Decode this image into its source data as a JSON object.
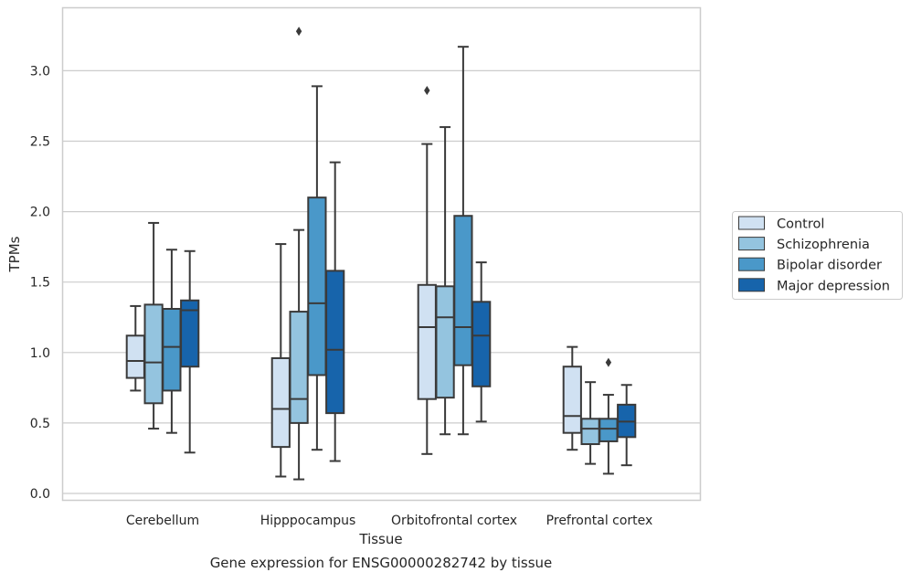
{
  "chart_data": {
    "type": "box",
    "xlabel": "Tissue",
    "ylabel": "TPMs",
    "caption": "Gene expression for ENSG00000282742 by tissue",
    "ylim": [
      -0.05,
      3.38
    ],
    "yticks": [
      "0.0",
      "0.5",
      "1.0",
      "1.5",
      "2.0",
      "2.5",
      "3.0"
    ],
    "grid": "horizontal",
    "legend_position": "right",
    "categories": [
      "Cerebellum",
      "Hipppocampus",
      "Orbitofrontal cortex",
      "Prefrontal cortex"
    ],
    "series": [
      {
        "name": "Control",
        "color": "#d0e1f2",
        "boxes": [
          {
            "whislo": 0.73,
            "q1": 0.82,
            "med": 0.94,
            "q3": 1.12,
            "whishi": 1.33,
            "fliers": []
          },
          {
            "whislo": 0.12,
            "q1": 0.33,
            "med": 0.6,
            "q3": 0.96,
            "whishi": 1.77,
            "fliers": []
          },
          {
            "whislo": 0.28,
            "q1": 0.67,
            "med": 1.18,
            "q3": 1.48,
            "whishi": 2.48,
            "fliers": [
              2.86
            ]
          },
          {
            "whislo": 0.31,
            "q1": 0.43,
            "med": 0.55,
            "q3": 0.9,
            "whishi": 1.04,
            "fliers": []
          }
        ]
      },
      {
        "name": "Schizophrenia",
        "color": "#94c4df",
        "boxes": [
          {
            "whislo": 0.46,
            "q1": 0.64,
            "med": 0.93,
            "q3": 1.34,
            "whishi": 1.92,
            "fliers": []
          },
          {
            "whislo": 0.1,
            "q1": 0.5,
            "med": 0.67,
            "q3": 1.29,
            "whishi": 1.87,
            "fliers": [
              3.28
            ]
          },
          {
            "whislo": 0.42,
            "q1": 0.68,
            "med": 1.25,
            "q3": 1.47,
            "whishi": 2.6,
            "fliers": []
          },
          {
            "whislo": 0.21,
            "q1": 0.35,
            "med": 0.46,
            "q3": 0.53,
            "whishi": 0.79,
            "fliers": []
          }
        ]
      },
      {
        "name": "Bipolar disorder",
        "color": "#4a98c9",
        "boxes": [
          {
            "whislo": 0.43,
            "q1": 0.73,
            "med": 1.04,
            "q3": 1.31,
            "whishi": 1.73,
            "fliers": []
          },
          {
            "whislo": 0.31,
            "q1": 0.84,
            "med": 1.35,
            "q3": 2.1,
            "whishi": 2.89,
            "fliers": []
          },
          {
            "whislo": 0.42,
            "q1": 0.91,
            "med": 1.18,
            "q3": 1.97,
            "whishi": 3.17,
            "fliers": []
          },
          {
            "whislo": 0.14,
            "q1": 0.37,
            "med": 0.46,
            "q3": 0.53,
            "whishi": 0.7,
            "fliers": [
              0.93
            ]
          }
        ]
      },
      {
        "name": "Major depression",
        "color": "#1764ab",
        "boxes": [
          {
            "whislo": 0.29,
            "q1": 0.9,
            "med": 1.3,
            "q3": 1.37,
            "whishi": 1.72,
            "fliers": []
          },
          {
            "whislo": 0.23,
            "q1": 0.57,
            "med": 1.02,
            "q3": 1.58,
            "whishi": 2.35,
            "fliers": []
          },
          {
            "whislo": 0.51,
            "q1": 0.76,
            "med": 1.12,
            "q3": 1.36,
            "whishi": 1.64,
            "fliers": []
          },
          {
            "whislo": 0.2,
            "q1": 0.4,
            "med": 0.51,
            "q3": 0.63,
            "whishi": 0.77,
            "fliers": []
          }
        ]
      }
    ]
  }
}
